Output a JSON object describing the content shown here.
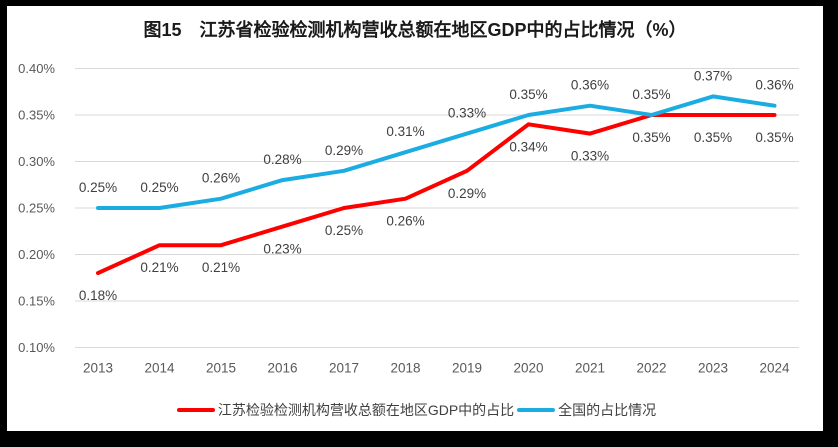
{
  "title": "图15　江苏省检验检测机构营收总额在地区GDP中的占比情况（%）",
  "chart_data": {
    "type": "line",
    "x": [
      "2013",
      "2014",
      "2015",
      "2016",
      "2017",
      "2018",
      "2019",
      "2020",
      "2021",
      "2022",
      "2023",
      "2024"
    ],
    "series": [
      {
        "name": "江苏检验检测机构营收总额在地区GDP中的占比",
        "color": "#FF0000",
        "values": [
          0.18,
          0.21,
          0.21,
          0.23,
          0.25,
          0.26,
          0.29,
          0.34,
          0.33,
          0.35,
          0.35,
          0.35
        ],
        "labels": [
          "0.18%",
          "0.21%",
          "0.21%",
          "0.23%",
          "0.25%",
          "0.26%",
          "0.29%",
          "0.34%",
          "0.33%",
          "0.35%",
          "0.35%",
          "0.35%"
        ],
        "label_position": "below"
      },
      {
        "name": "全国的占比情况",
        "color": "#1BACE2",
        "values": [
          0.25,
          0.25,
          0.26,
          0.28,
          0.29,
          0.31,
          0.33,
          0.35,
          0.36,
          0.35,
          0.37,
          0.36
        ],
        "labels": [
          "0.25%",
          "0.25%",
          "0.26%",
          "0.28%",
          "0.29%",
          "0.31%",
          "0.33%",
          "0.35%",
          "0.36%",
          "0.35%",
          "0.37%",
          "0.36%"
        ],
        "label_position": "above"
      }
    ],
    "xlabel": "",
    "ylabel": "",
    "ylim": [
      0.1,
      0.4
    ],
    "y_tick_step": 0.05,
    "y_tick_labels": [
      "0.10%",
      "0.15%",
      "0.20%",
      "0.25%",
      "0.30%",
      "0.35%",
      "0.40%"
    ],
    "grid": true,
    "legend_position": "bottom",
    "gridline_color": "#D9D9D9",
    "axis_label_color": "#595959",
    "data_label_color": "#404040",
    "frame_color": "#000000"
  }
}
